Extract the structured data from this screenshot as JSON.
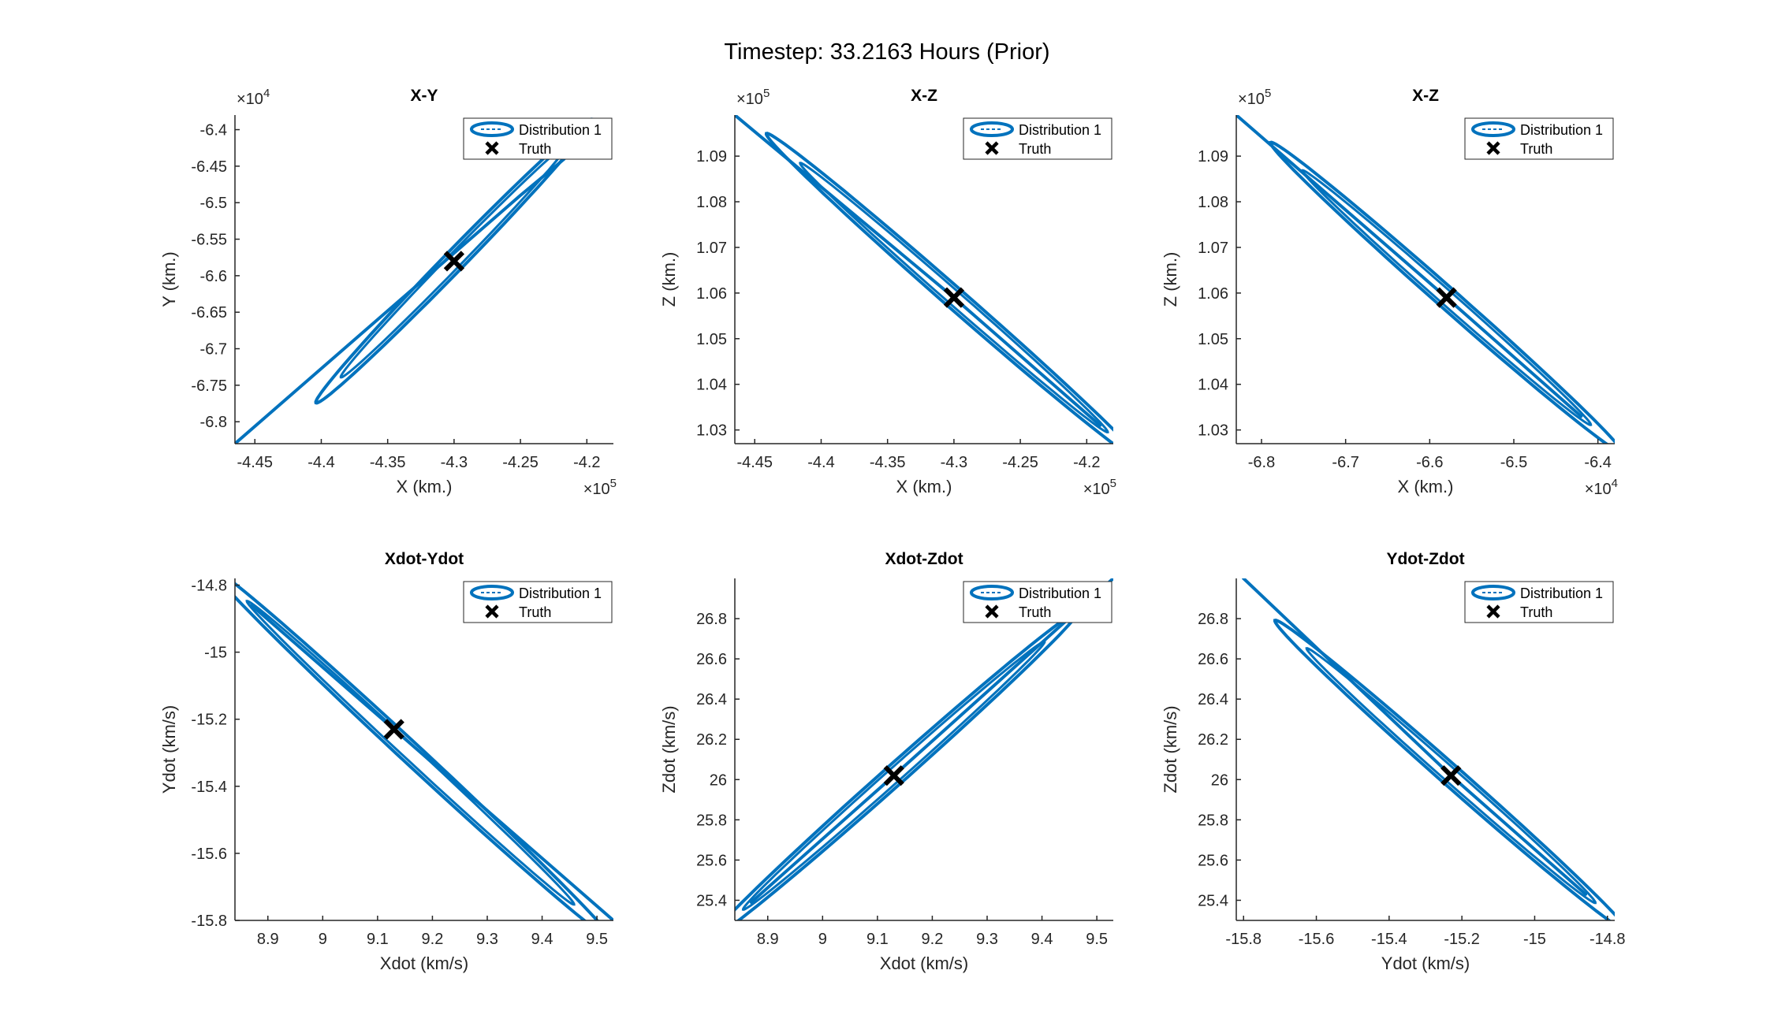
{
  "figure": {
    "title": "Timestep: 33.2163 Hours (Prior)"
  },
  "colors": {
    "series": "#0072BD",
    "truth": "#000000",
    "axis": "#262626"
  },
  "icons": {
    "truth_marker": "x-marker-icon",
    "distribution_marker": "ellipse-icon"
  },
  "chart_data": [
    {
      "type": "scatter",
      "title": "X-Y",
      "xlabel": "X (km.)",
      "ylabel": "Y (km.)",
      "xlim": [
        -446500,
        -418000
      ],
      "ylim": [
        -68300,
        -63800
      ],
      "xticks": [
        -445000,
        -440000,
        -435000,
        -430000,
        -425000,
        -420000
      ],
      "xtick_labels": [
        "-4.45",
        "-4.4",
        "-4.35",
        "-4.3",
        "-4.25",
        "-4.2"
      ],
      "yticks": [
        -64000,
        -64500,
        -65000,
        -65500,
        -66000,
        -66500,
        -67000,
        -67500,
        -68000
      ],
      "ytick_labels": [
        "-6.4",
        "-6.45",
        "-6.5",
        "-6.55",
        "-6.6",
        "-6.65",
        "-6.7",
        "-6.75",
        "-6.8"
      ],
      "x_exponent": "10^5",
      "y_exponent": "10^4",
      "ellipse": {
        "center": [
          -430000,
          -65800
        ],
        "end": [
          -422500,
          -64400
        ],
        "half_width": 130
      },
      "series": [
        {
          "name": "Distribution 1",
          "x": [
            -446500,
            -425000,
            -421700
          ],
          "y": [
            -68300,
            -64900,
            -64400
          ]
        },
        {
          "name": "Truth",
          "x": [
            -430000
          ],
          "y": [
            -65800
          ]
        }
      ],
      "legend": {
        "position": "top-right",
        "entries": [
          "Distribution 1",
          "Truth"
        ]
      },
      "grid": false
    },
    {
      "type": "scatter",
      "title": "X-Z",
      "xlabel": "X (km.)",
      "ylabel": "Z (km.)",
      "xlim": [
        -446500,
        -418000
      ],
      "ylim": [
        102700,
        109900
      ],
      "xticks": [
        -445000,
        -440000,
        -435000,
        -430000,
        -425000,
        -420000
      ],
      "xtick_labels": [
        "-4.45",
        "-4.4",
        "-4.35",
        "-4.3",
        "-4.25",
        "-4.2"
      ],
      "yticks": [
        103000,
        104000,
        105000,
        106000,
        107000,
        108000,
        109000
      ],
      "ytick_labels": [
        "1.03",
        "1.04",
        "1.05",
        "1.06",
        "1.07",
        "1.08",
        "1.09"
      ],
      "x_exponent": "10^5",
      "y_exponent": "10^5",
      "ellipse": {
        "center": [
          -430000,
          105900
        ],
        "end": [
          -419000,
          103100
        ],
        "half_width": 110
      },
      "series": [
        {
          "name": "Distribution 1",
          "x": [
            -446500,
            -430000,
            -419000
          ],
          "y": [
            109900,
            105900,
            103100
          ]
        },
        {
          "name": "Truth",
          "x": [
            -430000
          ],
          "y": [
            105900
          ]
        }
      ],
      "legend": {
        "position": "top-right",
        "entries": [
          "Distribution 1",
          "Truth"
        ]
      },
      "grid": false
    },
    {
      "type": "scatter",
      "title": "X-Z",
      "xlabel": "X (km.)",
      "ylabel": "Z (km.)",
      "xlim": [
        -68300,
        -63800
      ],
      "ylim": [
        102700,
        109900
      ],
      "xticks": [
        -68000,
        -67000,
        -66000,
        -65000,
        -64000
      ],
      "xtick_labels": [
        "-6.8",
        "-6.7",
        "-6.6",
        "-6.5",
        "-6.4"
      ],
      "yticks": [
        103000,
        104000,
        105000,
        106000,
        107000,
        108000,
        109000
      ],
      "ytick_labels": [
        "1.03",
        "1.04",
        "1.05",
        "1.06",
        "1.07",
        "1.08",
        "1.09"
      ],
      "x_exponent": "10^4",
      "y_exponent": "10^5",
      "ellipse": {
        "center": [
          -65800,
          105900
        ],
        "end": [
          -64200,
          103300
        ],
        "half_width": 90
      },
      "series": [
        {
          "name": "Distribution 1",
          "x": [
            -68300,
            -65800,
            -64200
          ],
          "y": [
            109900,
            105900,
            103300
          ]
        },
        {
          "name": "Truth",
          "x": [
            -65800
          ],
          "y": [
            105900
          ]
        }
      ],
      "legend": {
        "position": "top-right",
        "entries": [
          "Distribution 1",
          "Truth"
        ]
      },
      "grid": false
    },
    {
      "type": "scatter",
      "title": "Xdot-Ydot",
      "xlabel": "Xdot (km/s)",
      "ylabel": "Ydot (km/s)",
      "xlim": [
        8.84,
        9.53
      ],
      "ylim": [
        -15.8,
        -14.78
      ],
      "xticks": [
        8.9,
        9,
        9.1,
        9.2,
        9.3,
        9.4,
        9.5
      ],
      "xtick_labels": [
        "8.9",
        "9",
        "9.1",
        "9.2",
        "9.3",
        "9.4",
        "9.5"
      ],
      "yticks": [
        -14.8,
        -15,
        -15.2,
        -15.4,
        -15.6,
        -15.8
      ],
      "ytick_labels": [
        "-14.8",
        "-15",
        "-15.2",
        "-15.4",
        "-15.6",
        "-15.8"
      ],
      "x_exponent": "",
      "y_exponent": "",
      "ellipse": {
        "center": [
          9.16,
          -15.3
        ],
        "end": [
          8.87,
          -14.86
        ],
        "half_width": 0.012
      },
      "series": [
        {
          "name": "Distribution 1",
          "x": [
            8.87,
            9.13,
            9.53
          ],
          "y": [
            -14.86,
            -15.23,
            -15.8
          ]
        },
        {
          "name": "Truth",
          "x": [
            9.13
          ],
          "y": [
            -15.23
          ]
        }
      ],
      "legend": {
        "position": "top-right",
        "entries": [
          "Distribution 1",
          "Truth"
        ]
      },
      "grid": false
    },
    {
      "type": "scatter",
      "title": "Xdot-Zdot",
      "xlabel": "Xdot (km/s)",
      "ylabel": "Zdot (km/s)",
      "xlim": [
        8.84,
        9.53
      ],
      "ylim": [
        25.3,
        27
      ],
      "xticks": [
        8.9,
        9,
        9.1,
        9.2,
        9.3,
        9.4,
        9.5
      ],
      "xtick_labels": [
        "8.9",
        "9",
        "9.1",
        "9.2",
        "9.3",
        "9.4",
        "9.5"
      ],
      "yticks": [
        25.4,
        25.6,
        25.8,
        26,
        26.2,
        26.4,
        26.6,
        26.8
      ],
      "ytick_labels": [
        "25.4",
        "25.6",
        "25.8",
        "26",
        "26.2",
        "26.4",
        "26.6",
        "26.8"
      ],
      "x_exponent": "",
      "y_exponent": "",
      "ellipse": {
        "center": [
          9.13,
          26.02
        ],
        "end": [
          8.87,
          25.39
        ],
        "half_width": 0.012
      },
      "series": [
        {
          "name": "Distribution 1",
          "x": [
            8.87,
            9.13,
            9.53
          ],
          "y": [
            25.39,
            26.02,
            27
          ]
        },
        {
          "name": "Truth",
          "x": [
            9.13
          ],
          "y": [
            26.02
          ]
        }
      ],
      "legend": {
        "position": "top-right",
        "entries": [
          "Distribution 1",
          "Truth"
        ]
      },
      "grid": false
    },
    {
      "type": "scatter",
      "title": "Ydot-Zdot",
      "xlabel": "Ydot (km/s)",
      "ylabel": "Zdot (km/s)",
      "xlim": [
        -15.82,
        -14.78
      ],
      "ylim": [
        25.3,
        27
      ],
      "xticks": [
        -15.8,
        -15.6,
        -15.4,
        -15.2,
        -15,
        -14.8
      ],
      "xtick_labels": [
        "-15.8",
        "-15.6",
        "-15.4",
        "-15.2",
        "-15",
        "-14.8"
      ],
      "yticks": [
        25.4,
        25.6,
        25.8,
        26,
        26.2,
        26.4,
        26.6,
        26.8
      ],
      "ytick_labels": [
        "25.4",
        "25.6",
        "25.8",
        "26",
        "26.2",
        "26.4",
        "26.6",
        "26.8"
      ],
      "x_exponent": "",
      "y_exponent": "",
      "ellipse": {
        "center": [
          -15.23,
          26.02
        ],
        "end": [
          -14.86,
          25.43
        ],
        "half_width": 0.01
      },
      "series": [
        {
          "name": "Distribution 1",
          "x": [
            -15.8,
            -15.23,
            -14.86
          ],
          "y": [
            27,
            26.02,
            25.43
          ]
        },
        {
          "name": "Truth",
          "x": [
            -15.23
          ],
          "y": [
            26.02
          ]
        }
      ],
      "legend": {
        "position": "top-right",
        "entries": [
          "Distribution 1",
          "Truth"
        ]
      },
      "grid": false
    }
  ]
}
